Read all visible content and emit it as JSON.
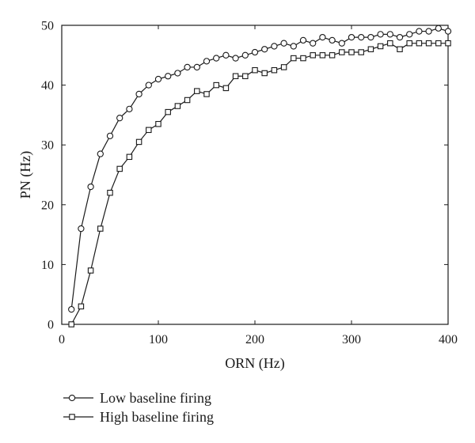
{
  "chart_data": {
    "type": "line",
    "xlabel": "ORN (Hz)",
    "ylabel": "PN (Hz)",
    "xlim": [
      0,
      400
    ],
    "ylim": [
      0,
      50
    ],
    "xticks": [
      0,
      100,
      200,
      300,
      400
    ],
    "yticks": [
      0,
      10,
      20,
      30,
      40,
      50
    ],
    "grid": false,
    "legend_position": "bottom-left",
    "x": [
      10,
      20,
      30,
      40,
      50,
      60,
      70,
      80,
      90,
      100,
      110,
      120,
      130,
      140,
      150,
      160,
      170,
      180,
      190,
      200,
      210,
      220,
      230,
      240,
      250,
      260,
      270,
      280,
      290,
      300,
      310,
      320,
      330,
      340,
      350,
      360,
      370,
      380,
      390,
      400
    ],
    "series": [
      {
        "name": "Low baseline firing",
        "marker": "circle",
        "color": "#1a1a1a",
        "values": [
          2.5,
          16,
          23,
          28.5,
          31.5,
          34.5,
          36,
          38.5,
          40,
          41,
          41.5,
          42,
          43,
          43,
          44,
          44.5,
          45,
          44.5,
          45,
          45.5,
          46,
          46.5,
          47,
          46.5,
          47.5,
          47,
          48,
          47.5,
          47,
          48,
          48,
          48,
          48.5,
          48.5,
          48,
          48.5,
          49,
          49,
          49.5,
          49
        ]
      },
      {
        "name": "High baseline firing",
        "marker": "square",
        "color": "#1a1a1a",
        "values": [
          0,
          3,
          9,
          16,
          22,
          26,
          28,
          30.5,
          32.5,
          33.5,
          35.5,
          36.5,
          37.5,
          39,
          38.5,
          40,
          39.5,
          41.5,
          41.5,
          42.5,
          42,
          42.5,
          43,
          44.5,
          44.5,
          45,
          45,
          45,
          45.5,
          45.5,
          45.5,
          46,
          46.5,
          47,
          46,
          47,
          47,
          47,
          47,
          47
        ]
      }
    ]
  }
}
